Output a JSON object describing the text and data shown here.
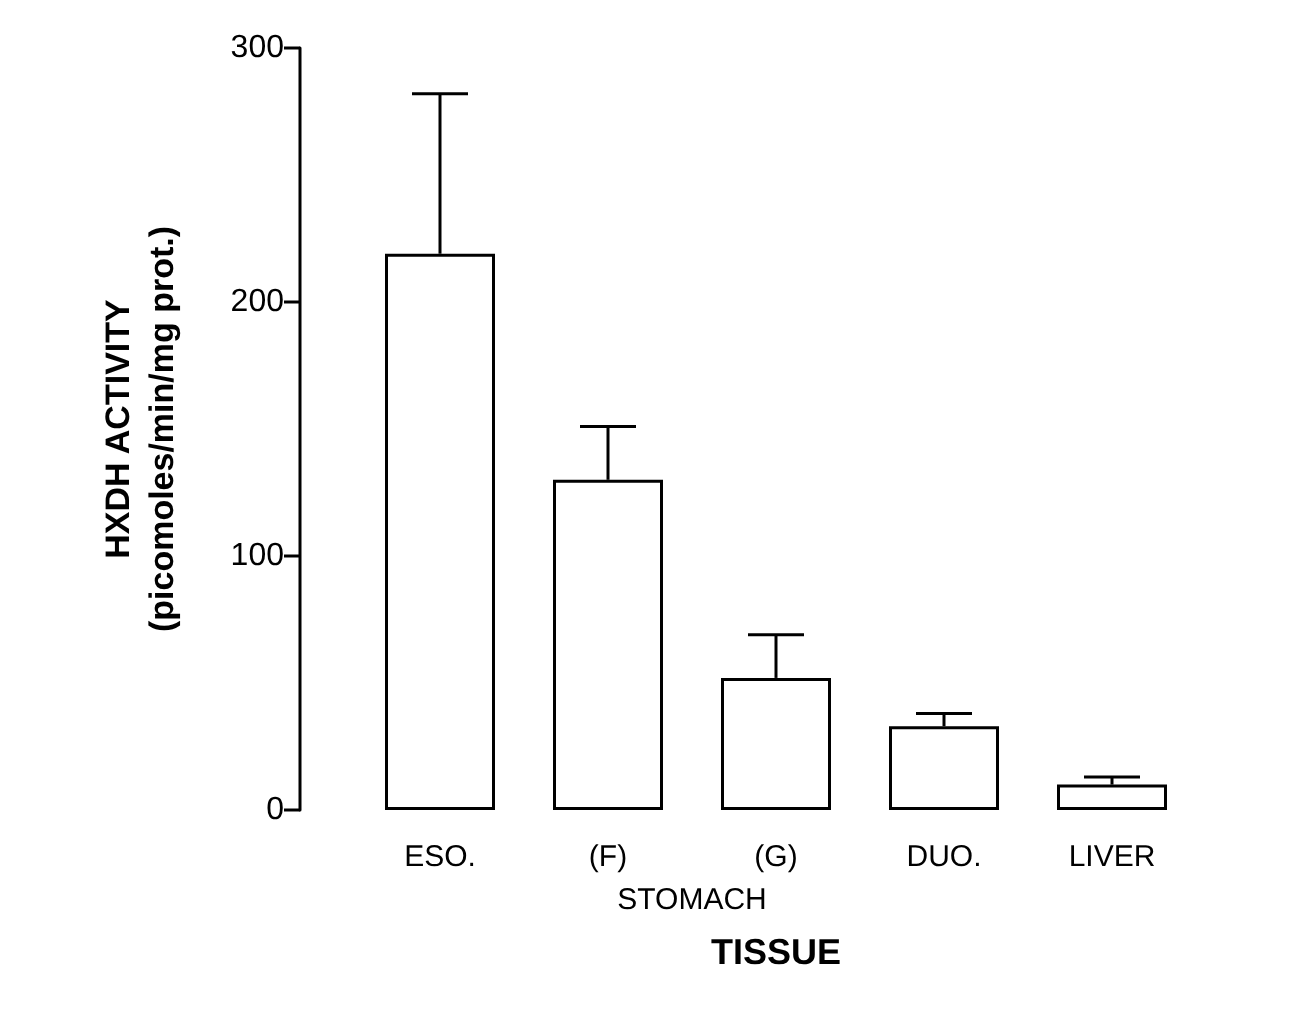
{
  "chart_data": {
    "type": "bar",
    "categories": [
      "ESO.",
      "(F)",
      "(G)",
      "DUO.",
      "LIVER"
    ],
    "values": [
      219,
      130,
      52,
      33,
      10
    ],
    "errors": [
      [
        219,
        282
      ],
      [
        130,
        151
      ],
      [
        52,
        69
      ],
      [
        33,
        38
      ],
      [
        10,
        13
      ]
    ],
    "color": "#ffffff",
    "xlabel": "TISSUE",
    "ylabel": "HXDH ACTIVITY\n(picomoles/min/mg prot.)",
    "ylim": [
      0,
      300
    ],
    "yticks": [
      0,
      100,
      200,
      300
    ],
    "annotations": [
      "STOMACH"
    ]
  }
}
